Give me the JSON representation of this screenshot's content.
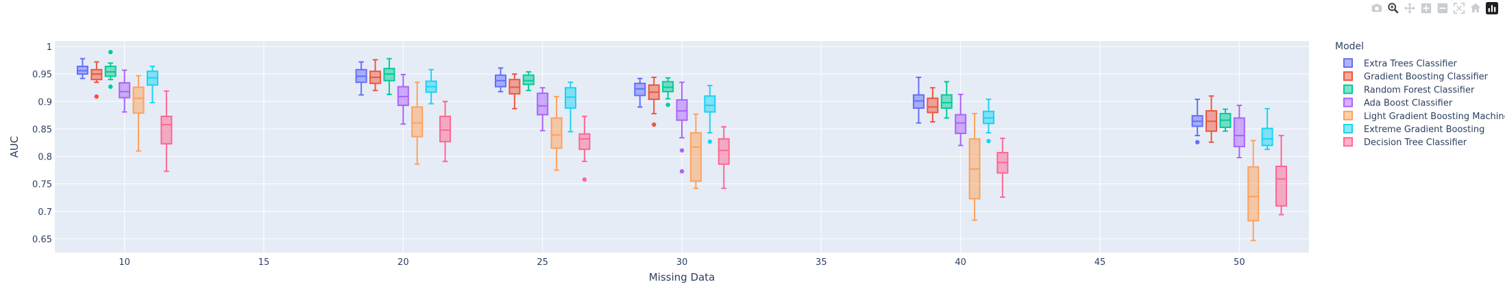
{
  "modebar": {
    "buttons": [
      {
        "icon": "camera-icon",
        "active": false
      },
      {
        "icon": "zoom-icon",
        "active": true
      },
      {
        "icon": "pan-icon",
        "active": false
      },
      {
        "icon": "zoom-in-icon",
        "active": false
      },
      {
        "icon": "zoom-out-icon",
        "active": false
      },
      {
        "icon": "autoscale-icon",
        "active": false
      },
      {
        "icon": "home-icon",
        "active": false
      },
      {
        "icon": "plotly-logo-icon",
        "active": false
      }
    ]
  },
  "chart_data": {
    "type": "box",
    "xlabel": "Missing Data",
    "ylabel": "AUC",
    "xlim": [
      7.5,
      52.5
    ],
    "ylim": [
      0.625,
      1.01
    ],
    "xticks": [
      10,
      15,
      20,
      25,
      30,
      35,
      40,
      45,
      50
    ],
    "yticks": [
      0.65,
      0.7,
      0.75,
      0.8,
      0.85,
      0.9,
      0.95,
      1
    ],
    "ytick_labels": [
      "0.65",
      "0.7",
      "0.75",
      "0.8",
      "0.85",
      "0.9",
      "0.95",
      "1"
    ],
    "grid": true,
    "legend": {
      "title": "Model",
      "position": "right"
    },
    "categories": [
      10,
      20,
      30,
      40,
      50,
      25
    ],
    "series": [
      {
        "name": "Extra Trees Classifier",
        "color": "#636efa",
        "boxes": [
          {
            "x": 10,
            "min": 0.942,
            "q1": 0.95,
            "median": 0.956,
            "q3": 0.964,
            "max": 0.978,
            "outliers": []
          },
          {
            "x": 20,
            "min": 0.912,
            "q1": 0.935,
            "median": 0.946,
            "q3": 0.958,
            "max": 0.972,
            "outliers": []
          },
          {
            "x": 25,
            "min": 0.918,
            "q1": 0.927,
            "median": 0.938,
            "q3": 0.948,
            "max": 0.961,
            "outliers": []
          },
          {
            "x": 30,
            "min": 0.89,
            "q1": 0.911,
            "median": 0.923,
            "q3": 0.933,
            "max": 0.942,
            "outliers": []
          },
          {
            "x": 40,
            "min": 0.861,
            "q1": 0.888,
            "median": 0.901,
            "q3": 0.912,
            "max": 0.944,
            "outliers": []
          },
          {
            "x": 50,
            "min": 0.838,
            "q1": 0.855,
            "median": 0.864,
            "q3": 0.874,
            "max": 0.904,
            "outliers": [
              0.826
            ]
          }
        ]
      },
      {
        "name": "Gradient Boosting Classifier",
        "color": "#ef553b",
        "boxes": [
          {
            "x": 10,
            "min": 0.935,
            "q1": 0.94,
            "median": 0.95,
            "q3": 0.958,
            "max": 0.972,
            "outliers": [
              0.909
            ]
          },
          {
            "x": 20,
            "min": 0.92,
            "q1": 0.933,
            "median": 0.944,
            "q3": 0.955,
            "max": 0.976,
            "outliers": []
          },
          {
            "x": 25,
            "min": 0.887,
            "q1": 0.914,
            "median": 0.926,
            "q3": 0.94,
            "max": 0.95,
            "outliers": []
          },
          {
            "x": 30,
            "min": 0.878,
            "q1": 0.904,
            "median": 0.917,
            "q3": 0.93,
            "max": 0.944,
            "outliers": [
              0.858
            ]
          },
          {
            "x": 40,
            "min": 0.863,
            "q1": 0.88,
            "median": 0.89,
            "q3": 0.906,
            "max": 0.925,
            "outliers": []
          },
          {
            "x": 50,
            "min": 0.826,
            "q1": 0.846,
            "median": 0.864,
            "q3": 0.883,
            "max": 0.91,
            "outliers": []
          }
        ]
      },
      {
        "name": "Random Forest Classifier",
        "color": "#00cc96",
        "boxes": [
          {
            "x": 10,
            "min": 0.94,
            "q1": 0.946,
            "median": 0.954,
            "q3": 0.964,
            "max": 0.97,
            "outliers": [
              0.99,
              0.927
            ]
          },
          {
            "x": 20,
            "min": 0.913,
            "q1": 0.938,
            "median": 0.95,
            "q3": 0.96,
            "max": 0.978,
            "outliers": []
          },
          {
            "x": 25,
            "min": 0.92,
            "q1": 0.931,
            "median": 0.938,
            "q3": 0.948,
            "max": 0.954,
            "outliers": []
          },
          {
            "x": 30,
            "min": 0.905,
            "q1": 0.918,
            "median": 0.926,
            "q3": 0.936,
            "max": 0.943,
            "outliers": [
              0.894
            ]
          },
          {
            "x": 40,
            "min": 0.87,
            "q1": 0.888,
            "median": 0.898,
            "q3": 0.912,
            "max": 0.936,
            "outliers": []
          },
          {
            "x": 50,
            "min": 0.846,
            "q1": 0.853,
            "median": 0.866,
            "q3": 0.878,
            "max": 0.886,
            "outliers": []
          }
        ]
      },
      {
        "name": "Ada Boost Classifier",
        "color": "#ab63fa",
        "boxes": [
          {
            "x": 10,
            "min": 0.881,
            "q1": 0.907,
            "median": 0.918,
            "q3": 0.934,
            "max": 0.957,
            "outliers": []
          },
          {
            "x": 20,
            "min": 0.859,
            "q1": 0.893,
            "median": 0.909,
            "q3": 0.927,
            "max": 0.949,
            "outliers": []
          },
          {
            "x": 25,
            "min": 0.847,
            "q1": 0.876,
            "median": 0.892,
            "q3": 0.915,
            "max": 0.925,
            "outliers": []
          },
          {
            "x": 30,
            "min": 0.834,
            "q1": 0.866,
            "median": 0.883,
            "q3": 0.903,
            "max": 0.935,
            "outliers": [
              0.811,
              0.773
            ]
          },
          {
            "x": 40,
            "min": 0.82,
            "q1": 0.842,
            "median": 0.861,
            "q3": 0.876,
            "max": 0.913,
            "outliers": []
          },
          {
            "x": 50,
            "min": 0.798,
            "q1": 0.818,
            "median": 0.838,
            "q3": 0.87,
            "max": 0.893,
            "outliers": []
          }
        ]
      },
      {
        "name": "Light Gradient Boosting Machine",
        "color": "#ffa15a",
        "boxes": [
          {
            "x": 10,
            "min": 0.81,
            "q1": 0.879,
            "median": 0.906,
            "q3": 0.926,
            "max": 0.947,
            "outliers": []
          },
          {
            "x": 20,
            "min": 0.786,
            "q1": 0.836,
            "median": 0.861,
            "q3": 0.89,
            "max": 0.935,
            "outliers": []
          },
          {
            "x": 25,
            "min": 0.775,
            "q1": 0.815,
            "median": 0.839,
            "q3": 0.87,
            "max": 0.909,
            "outliers": []
          },
          {
            "x": 30,
            "min": 0.742,
            "q1": 0.755,
            "median": 0.817,
            "q3": 0.843,
            "max": 0.877,
            "outliers": []
          },
          {
            "x": 40,
            "min": 0.684,
            "q1": 0.723,
            "median": 0.777,
            "q3": 0.832,
            "max": 0.878,
            "outliers": []
          },
          {
            "x": 50,
            "min": 0.647,
            "q1": 0.683,
            "median": 0.727,
            "q3": 0.781,
            "max": 0.829,
            "outliers": []
          }
        ]
      },
      {
        "name": "Extreme Gradient Boosting",
        "color": "#19d3f3",
        "boxes": [
          {
            "x": 10,
            "min": 0.898,
            "q1": 0.93,
            "median": 0.943,
            "q3": 0.955,
            "max": 0.964,
            "outliers": []
          },
          {
            "x": 20,
            "min": 0.896,
            "q1": 0.917,
            "median": 0.927,
            "q3": 0.937,
            "max": 0.958,
            "outliers": []
          },
          {
            "x": 25,
            "min": 0.845,
            "q1": 0.888,
            "median": 0.908,
            "q3": 0.925,
            "max": 0.935,
            "outliers": []
          },
          {
            "x": 30,
            "min": 0.843,
            "q1": 0.881,
            "median": 0.893,
            "q3": 0.91,
            "max": 0.929,
            "outliers": [
              0.827
            ]
          },
          {
            "x": 40,
            "min": 0.843,
            "q1": 0.86,
            "median": 0.87,
            "q3": 0.882,
            "max": 0.904,
            "outliers": [
              0.828
            ]
          },
          {
            "x": 50,
            "min": 0.813,
            "q1": 0.82,
            "median": 0.832,
            "q3": 0.851,
            "max": 0.887,
            "outliers": []
          }
        ]
      },
      {
        "name": "Decision Tree Classifier",
        "color": "#ff6692",
        "boxes": [
          {
            "x": 10,
            "min": 0.773,
            "q1": 0.823,
            "median": 0.858,
            "q3": 0.873,
            "max": 0.919,
            "outliers": []
          },
          {
            "x": 20,
            "min": 0.791,
            "q1": 0.827,
            "median": 0.848,
            "q3": 0.873,
            "max": 0.9,
            "outliers": []
          },
          {
            "x": 25,
            "min": 0.791,
            "q1": 0.813,
            "median": 0.832,
            "q3": 0.841,
            "max": 0.873,
            "outliers": [
              0.758
            ]
          },
          {
            "x": 30,
            "min": 0.742,
            "q1": 0.786,
            "median": 0.811,
            "q3": 0.832,
            "max": 0.854,
            "outliers": []
          },
          {
            "x": 40,
            "min": 0.726,
            "q1": 0.77,
            "median": 0.789,
            "q3": 0.807,
            "max": 0.833,
            "outliers": []
          },
          {
            "x": 50,
            "min": 0.694,
            "q1": 0.71,
            "median": 0.759,
            "q3": 0.782,
            "max": 0.838,
            "outliers": []
          }
        ]
      }
    ]
  }
}
